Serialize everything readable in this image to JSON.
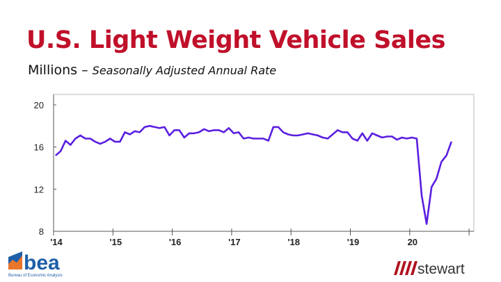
{
  "title": "U.S. Light Weight Vehicle Sales",
  "subtitle": {
    "units": "Millions –",
    "detail": "Seasonally Adjusted Annual Rate"
  },
  "logos": {
    "left": "bea",
    "left_caption": "Bureau of Economic Analysis",
    "right": "stewart"
  },
  "colors": {
    "title": "#c0102a",
    "line": "#5a1ee0",
    "bea_blue": "#1f5fa8",
    "bea_orange": "#e8762b",
    "stewart_red": "#b0131f"
  },
  "chart_data": {
    "type": "line",
    "title": "",
    "xlabel": "",
    "ylabel": "",
    "ylim": [
      8,
      20
    ],
    "yticks": [
      "8",
      "12",
      "16",
      "20"
    ],
    "xticks": [
      "'14",
      "'15",
      "'16",
      "'17",
      "'18",
      "'19",
      "20",
      ""
    ],
    "x_start": "2014-01",
    "frequency": "monthly",
    "grid": false,
    "series": [
      {
        "values": [
          15.2,
          15.6,
          16.6,
          16.2,
          16.8,
          17.1,
          16.8,
          16.8,
          16.5,
          16.3,
          16.5,
          16.8,
          16.5,
          16.5,
          17.4,
          17.2,
          17.5,
          17.4,
          17.9,
          18.0,
          17.9,
          17.8,
          17.9,
          17.1,
          17.6,
          17.6,
          16.9,
          17.3,
          17.3,
          17.4,
          17.7,
          17.5,
          17.6,
          17.6,
          17.4,
          17.8,
          17.3,
          17.4,
          16.8,
          16.9,
          16.8,
          16.8,
          16.8,
          16.6,
          17.9,
          17.9,
          17.4,
          17.2,
          17.1,
          17.1,
          17.2,
          17.3,
          17.2,
          17.1,
          16.9,
          16.8,
          17.2,
          17.6,
          17.4,
          17.4,
          16.8,
          16.6,
          17.3,
          16.6,
          17.3,
          17.1,
          16.9,
          17.0,
          17.0,
          16.7,
          16.9,
          16.8,
          16.9,
          16.8,
          11.4,
          8.7,
          12.2,
          13.0,
          14.6,
          15.2,
          16.5
        ]
      }
    ]
  }
}
